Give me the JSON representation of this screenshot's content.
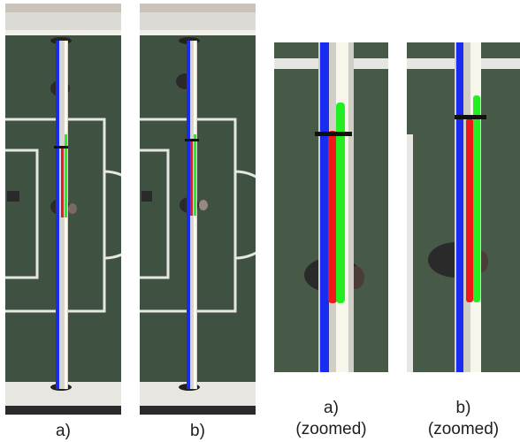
{
  "figure": {
    "panels": [
      {
        "id": "a",
        "caption": "a)",
        "subcaption": ""
      },
      {
        "id": "b",
        "caption": "b)",
        "subcaption": ""
      },
      {
        "id": "a-zoomed",
        "caption": "a)",
        "subcaption": "(zoomed)"
      },
      {
        "id": "b-zoomed",
        "caption": "b)",
        "subcaption": "(zoomed)"
      }
    ],
    "colors": {
      "field": "#3f5242",
      "field_lines": "#e6e6e2",
      "rod": "#d8d6cc",
      "frame": "#2a2a2c",
      "marker_blue": "#1a2cf0",
      "marker_red": "#ee1a1a",
      "marker_green": "#22ee22",
      "marker_black": "#111111",
      "player": "#2b2a2a"
    }
  }
}
